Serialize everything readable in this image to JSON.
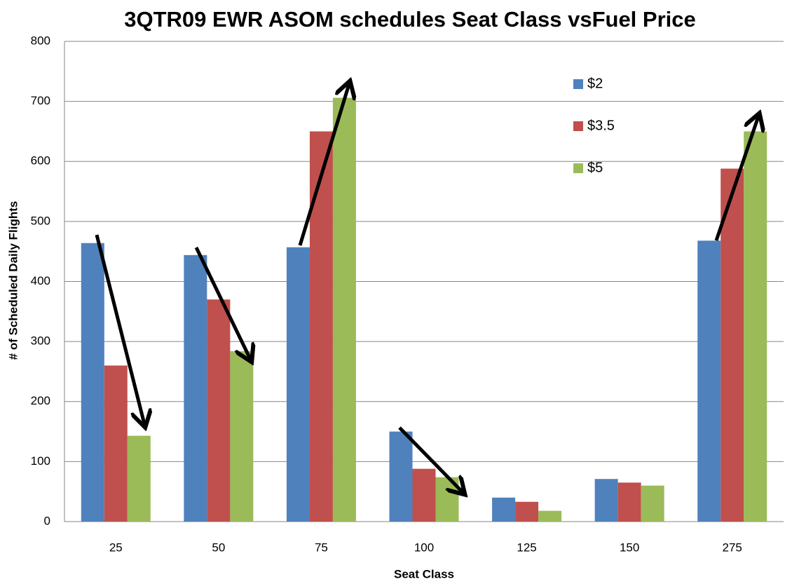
{
  "chart_data": {
    "type": "bar",
    "title": "3QTR09 EWR ASOM schedules Seat Class vsFuel Price",
    "x_label": "Seat Class",
    "y_label": "# of Scheduled Daily Flights",
    "categories": [
      "25",
      "50",
      "75",
      "100",
      "125",
      "150",
      "275"
    ],
    "series": [
      {
        "name": "$2",
        "color": "#4f81bd",
        "values": [
          464,
          444,
          457,
          150,
          40,
          71,
          468
        ]
      },
      {
        "name": "$3.5",
        "color": "#c0504d",
        "values": [
          260,
          370,
          650,
          88,
          33,
          65,
          588
        ]
      },
      {
        "name": "$5",
        "color": "#9bbb59",
        "values": [
          143,
          284,
          706,
          74,
          18,
          60,
          650
        ]
      }
    ],
    "ylim": [
      0,
      800
    ],
    "yticks": [
      0,
      100,
      200,
      300,
      400,
      500,
      600,
      700,
      800
    ],
    "grid": true,
    "legend": "upper right"
  }
}
